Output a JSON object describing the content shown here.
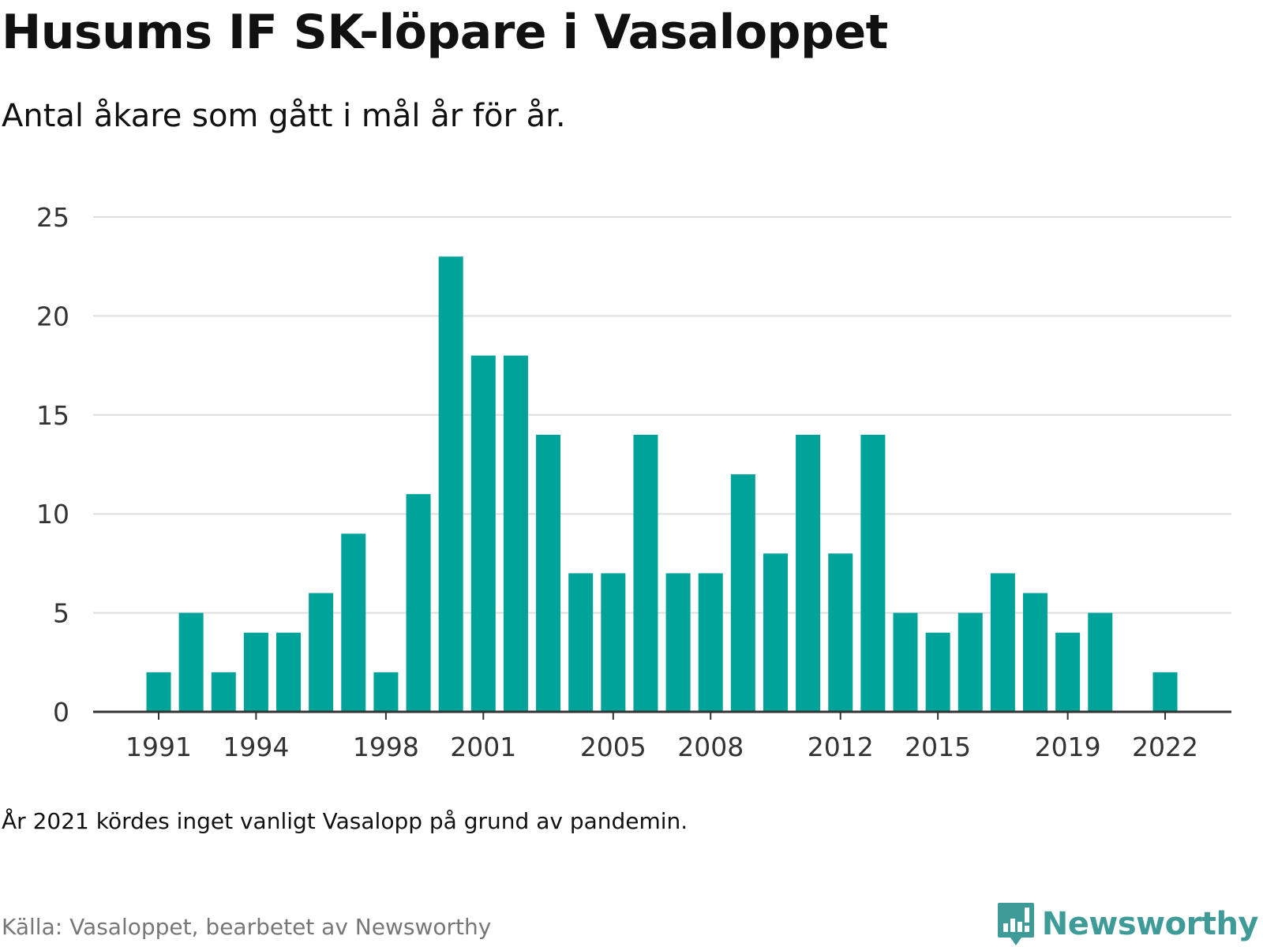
{
  "title": "Husums IF SK-löpare i Vasaloppet",
  "subtitle": "Antal åkare som gått i mål år för år.",
  "note": "År 2021 kördes inget vanligt Vasalopp på grund av pandemin.",
  "source": "Källa: Vasaloppet, bearbetet av Newsworthy",
  "brand": {
    "name": "Newsworthy",
    "icon": "newsworthy-logo-icon",
    "color": "#3f9b97"
  },
  "chart_data": {
    "type": "bar",
    "bar_color": "#00a39a",
    "grid": true,
    "legend": "none",
    "ylim": [
      0,
      25
    ],
    "yticks": [
      0,
      5,
      10,
      15,
      20,
      25
    ],
    "xtick_labels": [
      "1991",
      "1994",
      "1998",
      "2001",
      "2005",
      "2008",
      "2012",
      "2015",
      "2019",
      "2022"
    ],
    "categories": [
      "1991",
      "1992",
      "1993",
      "1994",
      "1995",
      "1996",
      "1997",
      "1998",
      "1999",
      "2000",
      "2001",
      "2002",
      "2003",
      "2004",
      "2005",
      "2006",
      "2007",
      "2008",
      "2009",
      "2010",
      "2011",
      "2012",
      "2013",
      "2014",
      "2015",
      "2016",
      "2017",
      "2018",
      "2019",
      "2020",
      "2021",
      "2022"
    ],
    "values": [
      2,
      5,
      2,
      4,
      4,
      6,
      9,
      2,
      11,
      23,
      18,
      18,
      14,
      7,
      7,
      14,
      7,
      7,
      12,
      8,
      14,
      8,
      14,
      5,
      4,
      5,
      7,
      6,
      4,
      5,
      null,
      2
    ]
  }
}
